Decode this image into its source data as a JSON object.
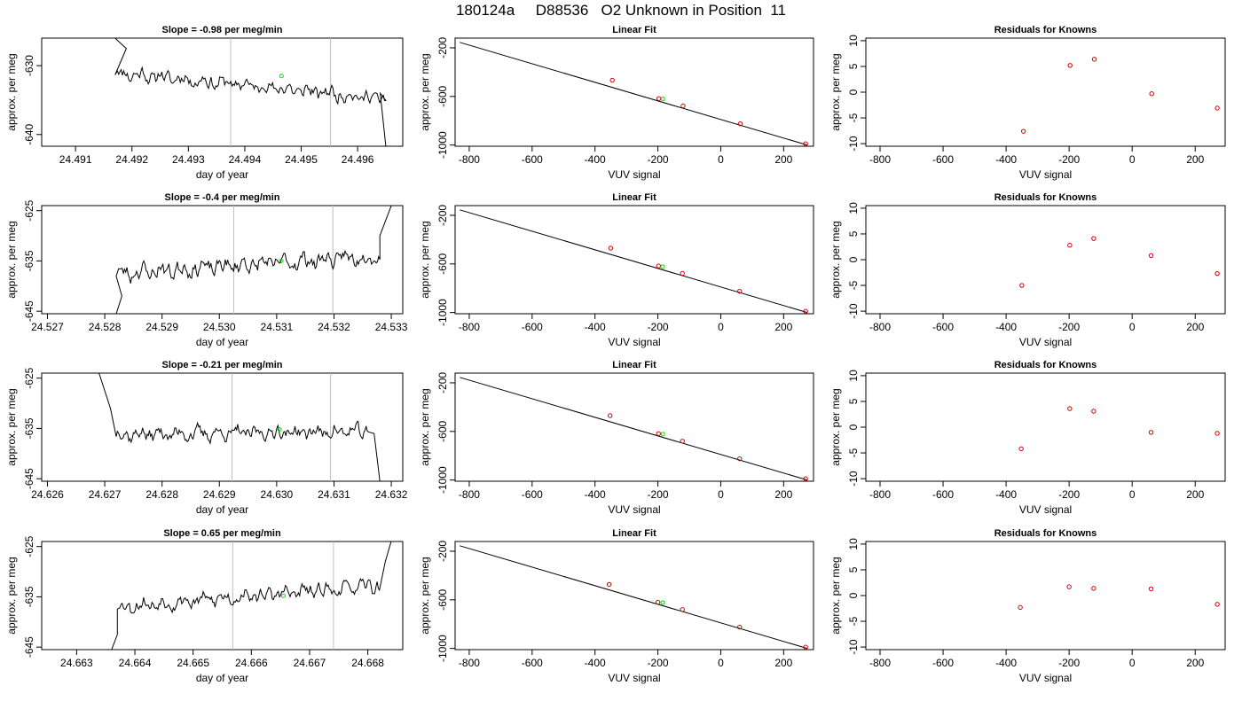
{
  "figure": {
    "title": "180124a     D88536   O2 Unknown in Position  11"
  },
  "styles": {
    "trace_color": "#000000",
    "marker_color": "#00e000",
    "known_point_color": "#cc0000",
    "vline_color": "#bebebe",
    "fit_line_color": "#000000"
  },
  "rows": [
    {
      "time_plot": {
        "title": "Slope =  -0.98  per meg/min",
        "xlabel": "day of year",
        "ylabel": "approx. per meg",
        "xlim": [
          24.4904,
          24.4968
        ],
        "ylim": [
          -641.7,
          -626.0
        ],
        "xticks": [
          "24.491",
          "24.492",
          "24.493",
          "24.494",
          "24.495",
          "24.496"
        ],
        "xtick_values": [
          24.491,
          24.492,
          24.493,
          24.494,
          24.495,
          24.496
        ],
        "yticks": [
          "-630",
          "-640"
        ],
        "ytick_values": [
          -630,
          -640
        ],
        "vlines": [
          24.49375,
          24.49552
        ],
        "marker": {
          "x": 24.49465,
          "y": -631.5
        },
        "trace": {
          "start": 24.4917,
          "end": 24.4965,
          "base": -631.0,
          "trend": -3.8,
          "noise": 1.2,
          "seed": 11,
          "lead": [
            [
              24.4917,
              -626.0
            ],
            [
              24.4919,
              -627.5
            ]
          ],
          "tail": [
            [
              24.4964,
              -634.0
            ],
            [
              24.4965,
              -641.7
            ]
          ]
        }
      },
      "fit_plot": {
        "title": "Linear Fit",
        "xlabel": "VUV signal",
        "ylabel": "approx. per meg",
        "xlim": [
          -845,
          295
        ],
        "ylim": [
          -1010,
          -120
        ],
        "xticks": [
          "-800",
          "-600",
          "-400",
          "-200",
          "0",
          "200"
        ],
        "xtick_values": [
          -800,
          -600,
          -400,
          -200,
          0,
          200
        ],
        "yticks": [
          "-200",
          "-600",
          "-1000"
        ],
        "ytick_values": [
          -200,
          -600,
          -1000
        ],
        "line": {
          "x": [
            -830,
            275
          ],
          "y": [
            -155,
            -1000
          ]
        },
        "knowns": [
          {
            "x": -345,
            "y": -467
          },
          {
            "x": -197,
            "y": -618
          },
          {
            "x": -120,
            "y": -678
          },
          {
            "x": 62,
            "y": -825
          },
          {
            "x": 270,
            "y": -990
          }
        ],
        "unknown": {
          "x": -184,
          "y": -621
        }
      },
      "resid_plot": {
        "title": "Residuals for Knowns",
        "xlabel": "VUV signal",
        "ylabel": "approx. per meg",
        "xlim": [
          -845,
          295
        ],
        "ylim": [
          -10.5,
          10.5
        ],
        "xticks": [
          "-800",
          "-600",
          "-400",
          "-200",
          "0",
          "200"
        ],
        "xtick_values": [
          -800,
          -600,
          -400,
          -200,
          0,
          200
        ],
        "yticks": [
          "-10",
          "-5",
          "0",
          "5",
          "10"
        ],
        "ytick_values": [
          -10,
          -5,
          0,
          5,
          10
        ],
        "points": [
          {
            "x": -345,
            "y": -7.6
          },
          {
            "x": -197,
            "y": 5.2
          },
          {
            "x": -120,
            "y": 6.4
          },
          {
            "x": 62,
            "y": -0.3
          },
          {
            "x": 270,
            "y": -3.1
          }
        ]
      }
    },
    {
      "time_plot": {
        "title": "Slope =  -0.4  per meg/min",
        "xlabel": "day of year",
        "ylabel": "approx. per meg",
        "xlim": [
          24.5269,
          24.5332
        ],
        "ylim": [
          -645.5,
          -624.0
        ],
        "xticks": [
          "24.527",
          "24.528",
          "24.529",
          "24.530",
          "24.531",
          "24.532",
          "24.533"
        ],
        "xtick_values": [
          24.527,
          24.528,
          24.529,
          24.53,
          24.531,
          24.532,
          24.533
        ],
        "yticks": [
          "-625",
          "-635",
          "-645"
        ],
        "ytick_values": [
          -625,
          -635,
          -645
        ],
        "vlines": [
          24.53025,
          24.53198
        ],
        "marker": {
          "x": 24.53108,
          "y": -635.0
        },
        "trace": {
          "start": 24.5282,
          "end": 24.5328,
          "base": -637.5,
          "trend": 3.5,
          "noise": 1.9,
          "seed": 23,
          "lead": [
            [
              24.5282,
              -645.5
            ],
            [
              24.5283,
              -642.0
            ]
          ],
          "tail": [
            [
              24.5328,
              -630.0
            ],
            [
              24.533,
              -624.0
            ]
          ]
        }
      },
      "fit_plot": {
        "title": "Linear Fit",
        "xlabel": "VUV signal",
        "ylabel": "approx. per meg",
        "xlim": [
          -845,
          295
        ],
        "ylim": [
          -1010,
          -120
        ],
        "xticks": [
          "-800",
          "-600",
          "-400",
          "-200",
          "0",
          "200"
        ],
        "xtick_values": [
          -800,
          -600,
          -400,
          -200,
          0,
          200
        ],
        "yticks": [
          "-200",
          "-600",
          "-1000"
        ],
        "ytick_values": [
          -200,
          -600,
          -1000
        ],
        "line": {
          "x": [
            -830,
            275
          ],
          "y": [
            -155,
            -1000
          ]
        },
        "knowns": [
          {
            "x": -350,
            "y": -470
          },
          {
            "x": -198,
            "y": -617
          },
          {
            "x": -122,
            "y": -678
          },
          {
            "x": 60,
            "y": -825
          },
          {
            "x": 270,
            "y": -990
          }
        ],
        "unknown": {
          "x": -185,
          "y": -623
        }
      },
      "resid_plot": {
        "title": "Residuals for Knowns",
        "xlabel": "VUV signal",
        "ylabel": "approx. per meg",
        "xlim": [
          -845,
          295
        ],
        "ylim": [
          -10.5,
          10.5
        ],
        "xticks": [
          "-800",
          "-600",
          "-400",
          "-200",
          "0",
          "200"
        ],
        "xtick_values": [
          -800,
          -600,
          -400,
          -200,
          0,
          200
        ],
        "yticks": [
          "-10",
          "-5",
          "0",
          "5",
          "10"
        ],
        "ytick_values": [
          -10,
          -5,
          0,
          5,
          10
        ],
        "points": [
          {
            "x": -350,
            "y": -5.0
          },
          {
            "x": -198,
            "y": 2.8
          },
          {
            "x": -122,
            "y": 4.1
          },
          {
            "x": 60,
            "y": 0.8
          },
          {
            "x": 270,
            "y": -2.7
          }
        ]
      }
    },
    {
      "time_plot": {
        "title": "Slope =  -0.21  per meg/min",
        "xlabel": "day of year",
        "ylabel": "approx. per meg",
        "xlim": [
          24.6259,
          24.6322
        ],
        "ylim": [
          -645.5,
          -624.0
        ],
        "xticks": [
          "24.626",
          "24.627",
          "24.628",
          "24.629",
          "24.630",
          "24.631",
          "24.632"
        ],
        "xtick_values": [
          24.626,
          24.627,
          24.628,
          24.629,
          24.63,
          24.631,
          24.632
        ],
        "yticks": [
          "-625",
          "-635",
          "-645"
        ],
        "ytick_values": [
          -625,
          -635,
          -645
        ],
        "vlines": [
          24.62922,
          24.63094
        ],
        "marker": {
          "x": 24.63005,
          "y": -635.2
        },
        "trace": {
          "start": 24.6272,
          "end": 24.6316,
          "base": -636.2,
          "trend": 0.6,
          "noise": 1.6,
          "seed": 37,
          "lead": [
            [
              24.6269,
              -624.0
            ],
            [
              24.6271,
              -631.0
            ]
          ],
          "tail": [
            [
              24.6317,
              -636.0
            ],
            [
              24.6318,
              -645.5
            ]
          ]
        }
      },
      "fit_plot": {
        "title": "Linear Fit",
        "xlabel": "VUV signal",
        "ylabel": "approx. per meg",
        "xlim": [
          -845,
          295
        ],
        "ylim": [
          -1010,
          -120
        ],
        "xticks": [
          "-800",
          "-600",
          "-400",
          "-200",
          "0",
          "200"
        ],
        "xtick_values": [
          -800,
          -600,
          -400,
          -200,
          0,
          200
        ],
        "yticks": [
          "-200",
          "-600",
          "-1000"
        ],
        "ytick_values": [
          -200,
          -600,
          -1000
        ],
        "line": {
          "x": [
            -830,
            275
          ],
          "y": [
            -155,
            -1000
          ]
        },
        "knowns": [
          {
            "x": -352,
            "y": -470
          },
          {
            "x": -198,
            "y": -618
          },
          {
            "x": -122,
            "y": -680
          },
          {
            "x": 60,
            "y": -825
          },
          {
            "x": 270,
            "y": -990
          }
        ],
        "unknown": {
          "x": -184,
          "y": -622
        }
      },
      "resid_plot": {
        "title": "Residuals for Knowns",
        "xlabel": "VUV signal",
        "ylabel": "approx. per meg",
        "xlim": [
          -845,
          295
        ],
        "ylim": [
          -10.5,
          10.5
        ],
        "xticks": [
          "-800",
          "-600",
          "-400",
          "-200",
          "0",
          "200"
        ],
        "xtick_values": [
          -800,
          -600,
          -400,
          -200,
          0,
          200
        ],
        "yticks": [
          "-10",
          "-5",
          "0",
          "5",
          "10"
        ],
        "ytick_values": [
          -10,
          -5,
          0,
          5,
          10
        ],
        "points": [
          {
            "x": -352,
            "y": -4.2
          },
          {
            "x": -198,
            "y": 3.6
          },
          {
            "x": -122,
            "y": 3.1
          },
          {
            "x": 60,
            "y": -1.0
          },
          {
            "x": 270,
            "y": -1.2
          }
        ]
      }
    },
    {
      "time_plot": {
        "title": "Slope =  0.65  per meg/min",
        "xlabel": "day of year",
        "ylabel": "approx. per meg",
        "xlim": [
          24.6624,
          24.6686
        ],
        "ylim": [
          -645.5,
          -624.0
        ],
        "xticks": [
          "24.663",
          "24.664",
          "24.665",
          "24.666",
          "24.667",
          "24.668"
        ],
        "xtick_values": [
          24.663,
          24.664,
          24.665,
          24.666,
          24.667,
          24.668
        ],
        "yticks": [
          "-625",
          "-635",
          "-645"
        ],
        "ytick_values": [
          -625,
          -635,
          -645
        ],
        "vlines": [
          24.66568,
          24.66741
        ],
        "marker": {
          "x": 24.66655,
          "y": -634.8
        },
        "trace": {
          "start": 24.6637,
          "end": 24.6682,
          "base": -637.0,
          "trend": 4.2,
          "noise": 1.6,
          "seed": 53,
          "lead": [
            [
              24.6636,
              -645.5
            ],
            [
              24.6637,
              -642.5
            ]
          ],
          "tail": [
            [
              24.6683,
              -628.0
            ],
            [
              24.6684,
              -624.0
            ]
          ]
        }
      },
      "fit_plot": {
        "title": "Linear Fit",
        "xlabel": "VUV signal",
        "ylabel": "approx. per meg",
        "xlim": [
          -845,
          295
        ],
        "ylim": [
          -1010,
          -120
        ],
        "xticks": [
          "-800",
          "-600",
          "-400",
          "-200",
          "0",
          "200"
        ],
        "xtick_values": [
          -800,
          -600,
          -400,
          -200,
          0,
          200
        ],
        "yticks": [
          "-200",
          "-600",
          "-1000"
        ],
        "ytick_values": [
          -200,
          -600,
          -1000
        ],
        "line": {
          "x": [
            -830,
            275
          ],
          "y": [
            -155,
            -1000
          ]
        },
        "knowns": [
          {
            "x": -355,
            "y": -473
          },
          {
            "x": -200,
            "y": -620
          },
          {
            "x": -122,
            "y": -680
          },
          {
            "x": 60,
            "y": -825
          },
          {
            "x": 270,
            "y": -990
          }
        ],
        "unknown": {
          "x": -185,
          "y": -623
        }
      },
      "resid_plot": {
        "title": "Residuals for Knowns",
        "xlabel": "VUV signal",
        "ylabel": "approx. per meg",
        "xlim": [
          -845,
          295
        ],
        "ylim": [
          -10.5,
          10.5
        ],
        "xticks": [
          "-800",
          "-600",
          "-400",
          "-200",
          "0",
          "200"
        ],
        "xtick_values": [
          -800,
          -600,
          -400,
          -200,
          0,
          200
        ],
        "yticks": [
          "-10",
          "-5",
          "0",
          "5",
          "10"
        ],
        "ytick_values": [
          -10,
          -5,
          0,
          5,
          10
        ],
        "points": [
          {
            "x": -355,
            "y": -2.3
          },
          {
            "x": -200,
            "y": 1.7
          },
          {
            "x": -122,
            "y": 1.4
          },
          {
            "x": 60,
            "y": 1.3
          },
          {
            "x": 270,
            "y": -1.7
          }
        ]
      }
    }
  ],
  "chart_data": [
    {
      "type": "line",
      "title": "Slope =  -0.98  per meg/min",
      "xlabel": "day of year",
      "ylabel": "approx. per meg",
      "xlim": [
        24.4904,
        24.4968
      ],
      "ylim": [
        -641.7,
        -626.0
      ],
      "highlight_point": {
        "x": 24.49465,
        "y": -631.5
      }
    },
    {
      "type": "scatter",
      "title": "Linear Fit",
      "xlabel": "VUV signal",
      "ylabel": "approx. per meg",
      "x": [
        -345,
        -197,
        -120,
        62,
        270
      ],
      "y": [
        -467,
        -618,
        -678,
        -825,
        -990
      ]
    },
    {
      "type": "scatter",
      "title": "Residuals for Knowns",
      "xlabel": "VUV signal",
      "ylabel": "approx. per meg",
      "x": [
        -345,
        -197,
        -120,
        62,
        270
      ],
      "y": [
        -7.6,
        5.2,
        6.4,
        -0.3,
        -3.1
      ]
    },
    {
      "type": "line",
      "title": "Slope =  -0.4  per meg/min",
      "xlabel": "day of year",
      "ylabel": "approx. per meg",
      "xlim": [
        24.5269,
        24.5332
      ],
      "ylim": [
        -645.5,
        -624.0
      ],
      "highlight_point": {
        "x": 24.53108,
        "y": -635.0
      }
    },
    {
      "type": "scatter",
      "title": "Linear Fit",
      "xlabel": "VUV signal",
      "ylabel": "approx. per meg",
      "x": [
        -350,
        -198,
        -122,
        60,
        270
      ],
      "y": [
        -470,
        -617,
        -678,
        -825,
        -990
      ]
    },
    {
      "type": "scatter",
      "title": "Residuals for Knowns",
      "xlabel": "VUV signal",
      "ylabel": "approx. per meg",
      "x": [
        -350,
        -198,
        -122,
        60,
        270
      ],
      "y": [
        -5.0,
        2.8,
        4.1,
        0.8,
        -2.7
      ]
    },
    {
      "type": "line",
      "title": "Slope =  -0.21  per meg/min",
      "xlabel": "day of year",
      "ylabel": "approx. per meg",
      "xlim": [
        24.6259,
        24.6322
      ],
      "ylim": [
        -645.5,
        -624.0
      ],
      "highlight_point": {
        "x": 24.63005,
        "y": -635.2
      }
    },
    {
      "type": "scatter",
      "title": "Linear Fit",
      "xlabel": "VUV signal",
      "ylabel": "approx. per meg",
      "x": [
        -352,
        -198,
        -122,
        60,
        270
      ],
      "y": [
        -470,
        -618,
        -680,
        -825,
        -990
      ]
    },
    {
      "type": "scatter",
      "title": "Residuals for Knowns",
      "xlabel": "VUV signal",
      "ylabel": "approx. per meg",
      "x": [
        -352,
        -198,
        -122,
        60,
        270
      ],
      "y": [
        -4.2,
        3.6,
        3.1,
        -1.0,
        -1.2
      ]
    },
    {
      "type": "line",
      "title": "Slope =  0.65  per meg/min",
      "xlabel": "day of year",
      "ylabel": "approx. per meg",
      "xlim": [
        24.6624,
        24.6686
      ],
      "ylim": [
        -645.5,
        -624.0
      ],
      "highlight_point": {
        "x": 24.66655,
        "y": -634.8
      }
    },
    {
      "type": "scatter",
      "title": "Linear Fit",
      "xlabel": "VUV signal",
      "ylabel": "approx. per meg",
      "x": [
        -355,
        -200,
        -122,
        60,
        270
      ],
      "y": [
        -473,
        -620,
        -680,
        -825,
        -990
      ]
    },
    {
      "type": "scatter",
      "title": "Residuals for Knowns",
      "xlabel": "VUV signal",
      "ylabel": "approx. per meg",
      "x": [
        -355,
        -200,
        -122,
        60,
        270
      ],
      "y": [
        -2.3,
        1.7,
        1.4,
        1.3,
        -1.7
      ]
    }
  ]
}
